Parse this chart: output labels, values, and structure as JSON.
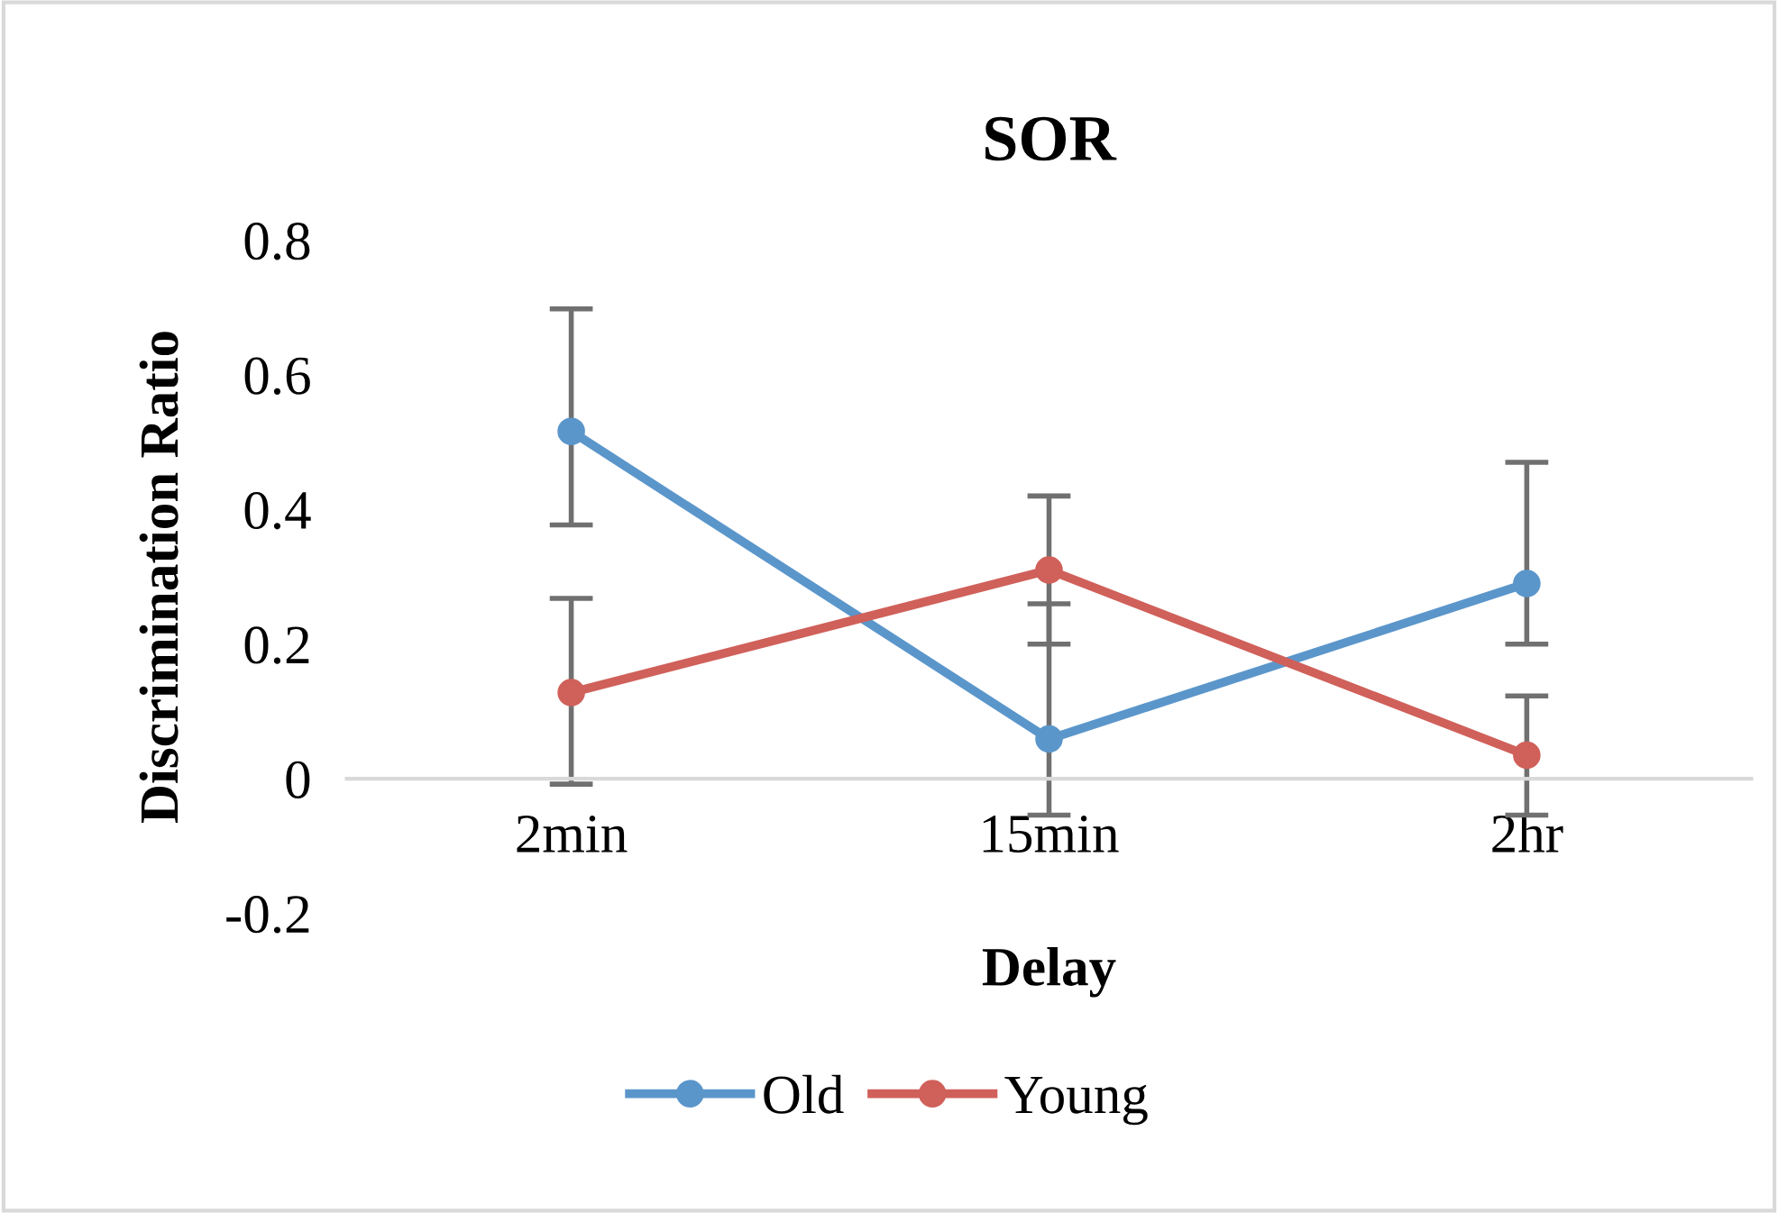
{
  "chart_data": {
    "type": "line",
    "title": "SOR",
    "xlabel": "Delay",
    "ylabel": "Discrimination Ratio",
    "categories": [
      "2min",
      "15min",
      "2hr"
    ],
    "series": [
      {
        "name": "Old",
        "color": "#5b96cb",
        "values": [
          0.516,
          0.059,
          0.29
        ],
        "errors": [
          [
            0.377,
            0.698
          ],
          [
            -0.054,
            0.26
          ],
          [
            0.2,
            0.47
          ]
        ]
      },
      {
        "name": "Young",
        "color": "#d0605a",
        "values": [
          0.128,
          0.31,
          0.035
        ],
        "errors": [
          [
            -0.008,
            0.268
          ],
          [
            0.2,
            0.42
          ],
          [
            -0.054,
            0.123
          ]
        ]
      }
    ],
    "ylim": [
      -0.2,
      0.8
    ],
    "yticks": [
      -0.2,
      0,
      0.2,
      0.4,
      0.6,
      0.8
    ],
    "grid": false,
    "legend": "bottom",
    "marker": "circle",
    "line_style": "solid"
  }
}
